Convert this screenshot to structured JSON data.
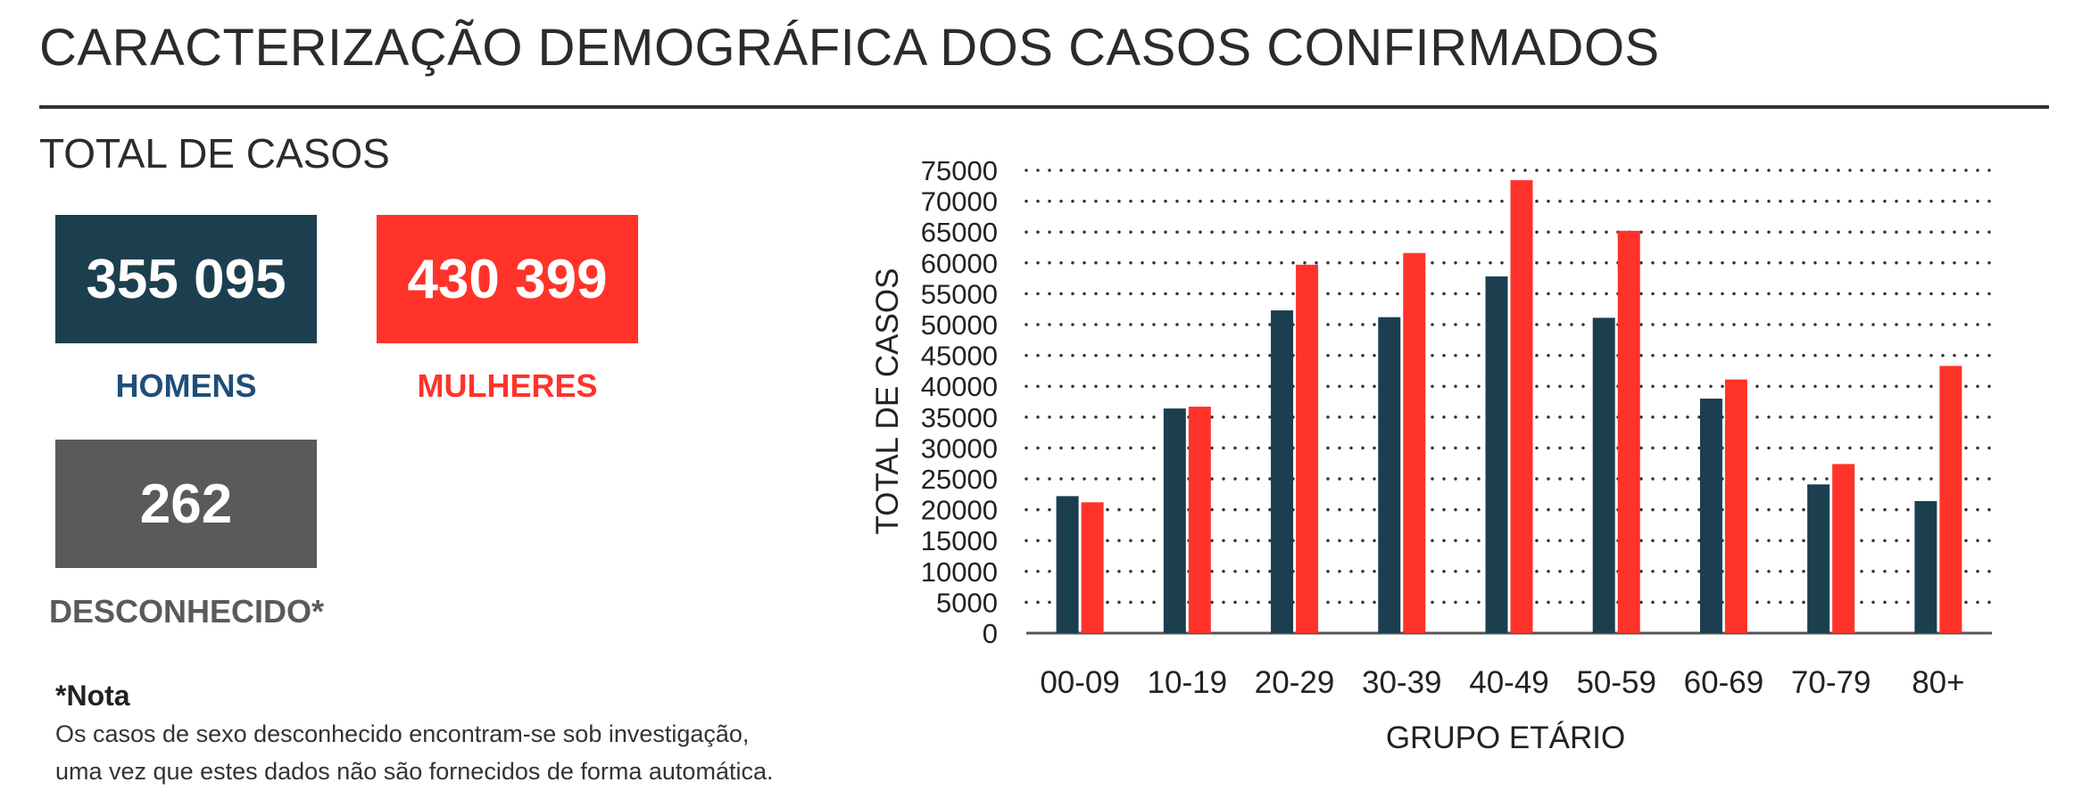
{
  "header": {
    "title": "CARACTERIZAÇÃO DEMOGRÁFICA DOS CASOS CONFIRMADOS"
  },
  "summary": {
    "section_title": "TOTAL DE CASOS",
    "men": {
      "value": "355 095",
      "label": "HOMENS",
      "box_color": "#1c3f4f",
      "label_color": "#1f4e79"
    },
    "women": {
      "value": "430 399",
      "label": "MULHERES",
      "box_color": "#ff3329",
      "label_color": "#ff3329"
    },
    "unknown": {
      "value": "262",
      "label": "DESCONHECIDO*",
      "box_color": "#5a5a5a",
      "label_color": "#5a5a5a"
    }
  },
  "note": {
    "title": "*Nota",
    "lines": [
      "Os casos de sexo desconhecido encontram-se sob investigação,",
      "uma vez que estes dados não são fornecidos de forma automática."
    ]
  },
  "chart_data": {
    "type": "bar",
    "xlabel": "GRUPO ETÁRIO",
    "ylabel": "TOTAL DE CASOS",
    "ylim": [
      0,
      75000
    ],
    "yticks": [
      0,
      5000,
      10000,
      15000,
      20000,
      25000,
      30000,
      35000,
      40000,
      45000,
      50000,
      55000,
      60000,
      65000,
      70000,
      75000
    ],
    "grid": "horizontal-dotted",
    "categories": [
      "00-09",
      "10-19",
      "20-29",
      "30-39",
      "40-49",
      "50-59",
      "60-69",
      "70-79",
      "80+"
    ],
    "series": [
      {
        "color": "#1c3f4f",
        "values": [
          22200,
          36400,
          52300,
          51200,
          57800,
          51100,
          38000,
          24100,
          21400
        ]
      },
      {
        "color": "#ff3329",
        "values": [
          21200,
          36700,
          59700,
          61600,
          73400,
          65200,
          41100,
          27400,
          43300
        ]
      }
    ]
  }
}
